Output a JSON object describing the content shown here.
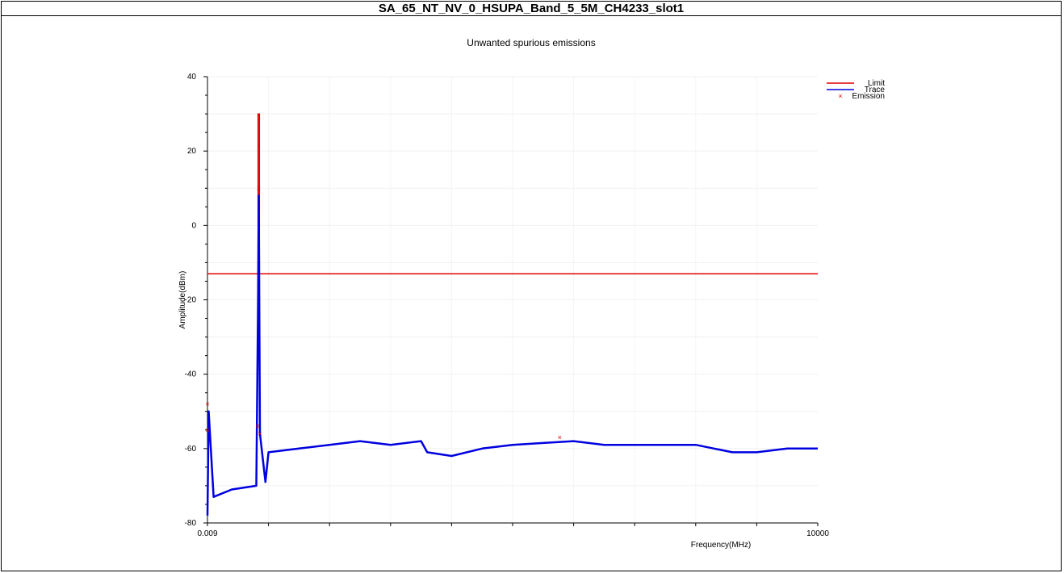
{
  "header": {
    "title": "SA_65_NT_NV_0_HSUPA_Band_5_5M_CH4233_slot1"
  },
  "chart_data": {
    "type": "line",
    "title": "Unwanted spurious emissions",
    "xlabel": "Frequency(MHz)",
    "ylabel": "Amplitude(dBm)",
    "x_ticks": [
      "0.009",
      "10000"
    ],
    "y_ticks": [
      40,
      20,
      0,
      -20,
      -40,
      -60,
      -80
    ],
    "ylim": [
      -80,
      40
    ],
    "xlim_positions": [
      0,
      1
    ],
    "grid": true,
    "legend_position": "top-right",
    "colors": {
      "limit": "#e00000",
      "trace": "#0000e0",
      "emission": "#e00000"
    },
    "series": [
      {
        "name": "Limit",
        "x": [
          0.0,
          0.083,
          0.083,
          0.084,
          0.084,
          0.085,
          0.085,
          1.0
        ],
        "y": [
          -13,
          -13,
          30,
          30,
          30,
          30,
          -13,
          -13
        ]
      },
      {
        "name": "Trace",
        "x": [
          0.0,
          0.002,
          0.01,
          0.04,
          0.08,
          0.083,
          0.084,
          0.086,
          0.095,
          0.1,
          0.15,
          0.2,
          0.25,
          0.3,
          0.35,
          0.36,
          0.4,
          0.45,
          0.5,
          0.55,
          0.6,
          0.65,
          0.7,
          0.75,
          0.8,
          0.83,
          0.86,
          0.9,
          0.95,
          1.0
        ],
        "y": [
          -78,
          -50,
          -73,
          -71,
          -70,
          -20,
          8,
          -56,
          -69,
          -61,
          -60,
          -59,
          -58,
          -59,
          -58,
          -61,
          -62,
          -60,
          -59,
          -58.5,
          -58,
          -59,
          -59,
          -59,
          -59,
          -60,
          -61,
          -61,
          -60,
          -60
        ]
      }
    ],
    "emissions": [
      {
        "x": 0.0,
        "y": -48
      },
      {
        "x": 0.0,
        "y": -55
      },
      {
        "x": 0.084,
        "y": 10
      },
      {
        "x": 0.082,
        "y": -54
      },
      {
        "x": 0.086,
        "y": -56
      },
      {
        "x": 0.577,
        "y": -57
      }
    ],
    "legend": [
      {
        "label": "Limit",
        "kind": "line",
        "color": "#e00000"
      },
      {
        "label": "Trace",
        "kind": "line",
        "color": "#0000e0"
      },
      {
        "label": "Emission",
        "kind": "marker",
        "color": "#e00000"
      }
    ]
  }
}
